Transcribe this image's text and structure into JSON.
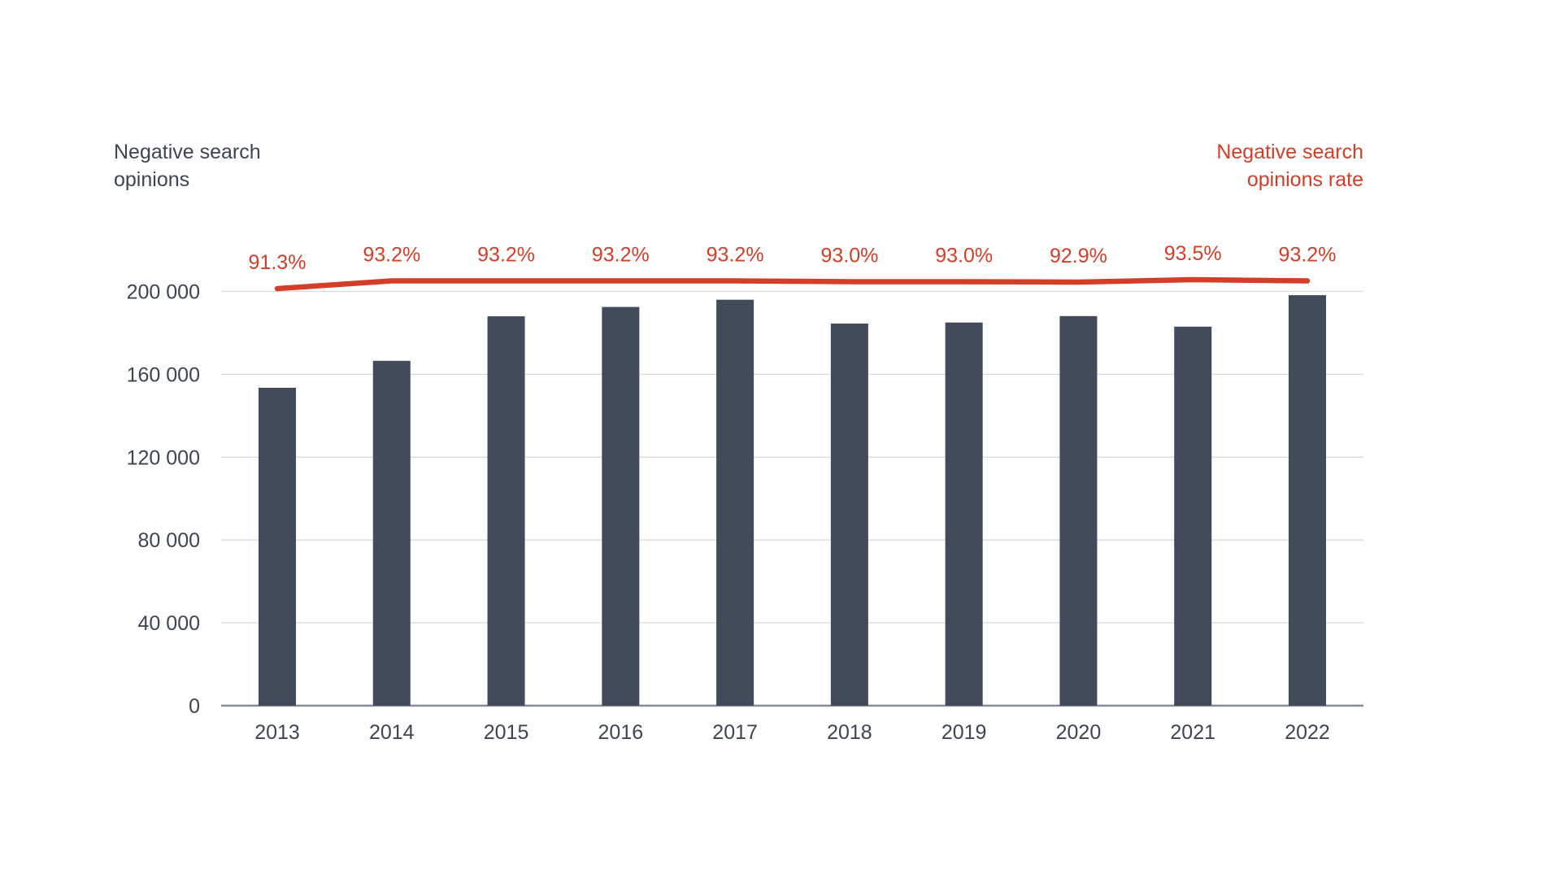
{
  "titles": {
    "left_line1": "Negative search",
    "left_line2": "opinions",
    "right_line1": "Negative search",
    "right_line2": "opinions rate"
  },
  "colors": {
    "bar": "#414b59",
    "line": "#d43d28",
    "grid": "#d9d9d9",
    "axis_line": "#858b94",
    "text": "#3d4552"
  },
  "chart_data": {
    "type": "combo-bar-line",
    "categories": [
      "2013",
      "2014",
      "2015",
      "2016",
      "2017",
      "2018",
      "2019",
      "2020",
      "2021",
      "2022"
    ],
    "series": [
      {
        "name": "Negative search opinions",
        "type": "bar",
        "values": [
          153500,
          166500,
          188000,
          192500,
          196000,
          184500,
          185000,
          188100,
          183000,
          198200
        ]
      },
      {
        "name": "Negative search opinions rate",
        "type": "line",
        "unit": "%",
        "values": [
          91.3,
          93.2,
          93.2,
          93.2,
          93.2,
          93.0,
          93.0,
          92.9,
          93.5,
          93.2
        ],
        "labels": [
          "91.3%",
          "93.2%",
          "93.2%",
          "93.2%",
          "93.2%",
          "93.0%",
          "93.0%",
          "92.9%",
          "93.5%",
          "93.2%"
        ]
      }
    ],
    "y_axis": {
      "min": 0,
      "max": 200000,
      "tick_values": [
        0,
        40000,
        80000,
        120000,
        160000,
        200000
      ],
      "tick_labels": [
        "0",
        "40 000",
        "80 000",
        "120 000",
        "160 000",
        "200 000"
      ]
    },
    "grid": "horizontal",
    "legend_position": "axis-titles-top-corners"
  }
}
